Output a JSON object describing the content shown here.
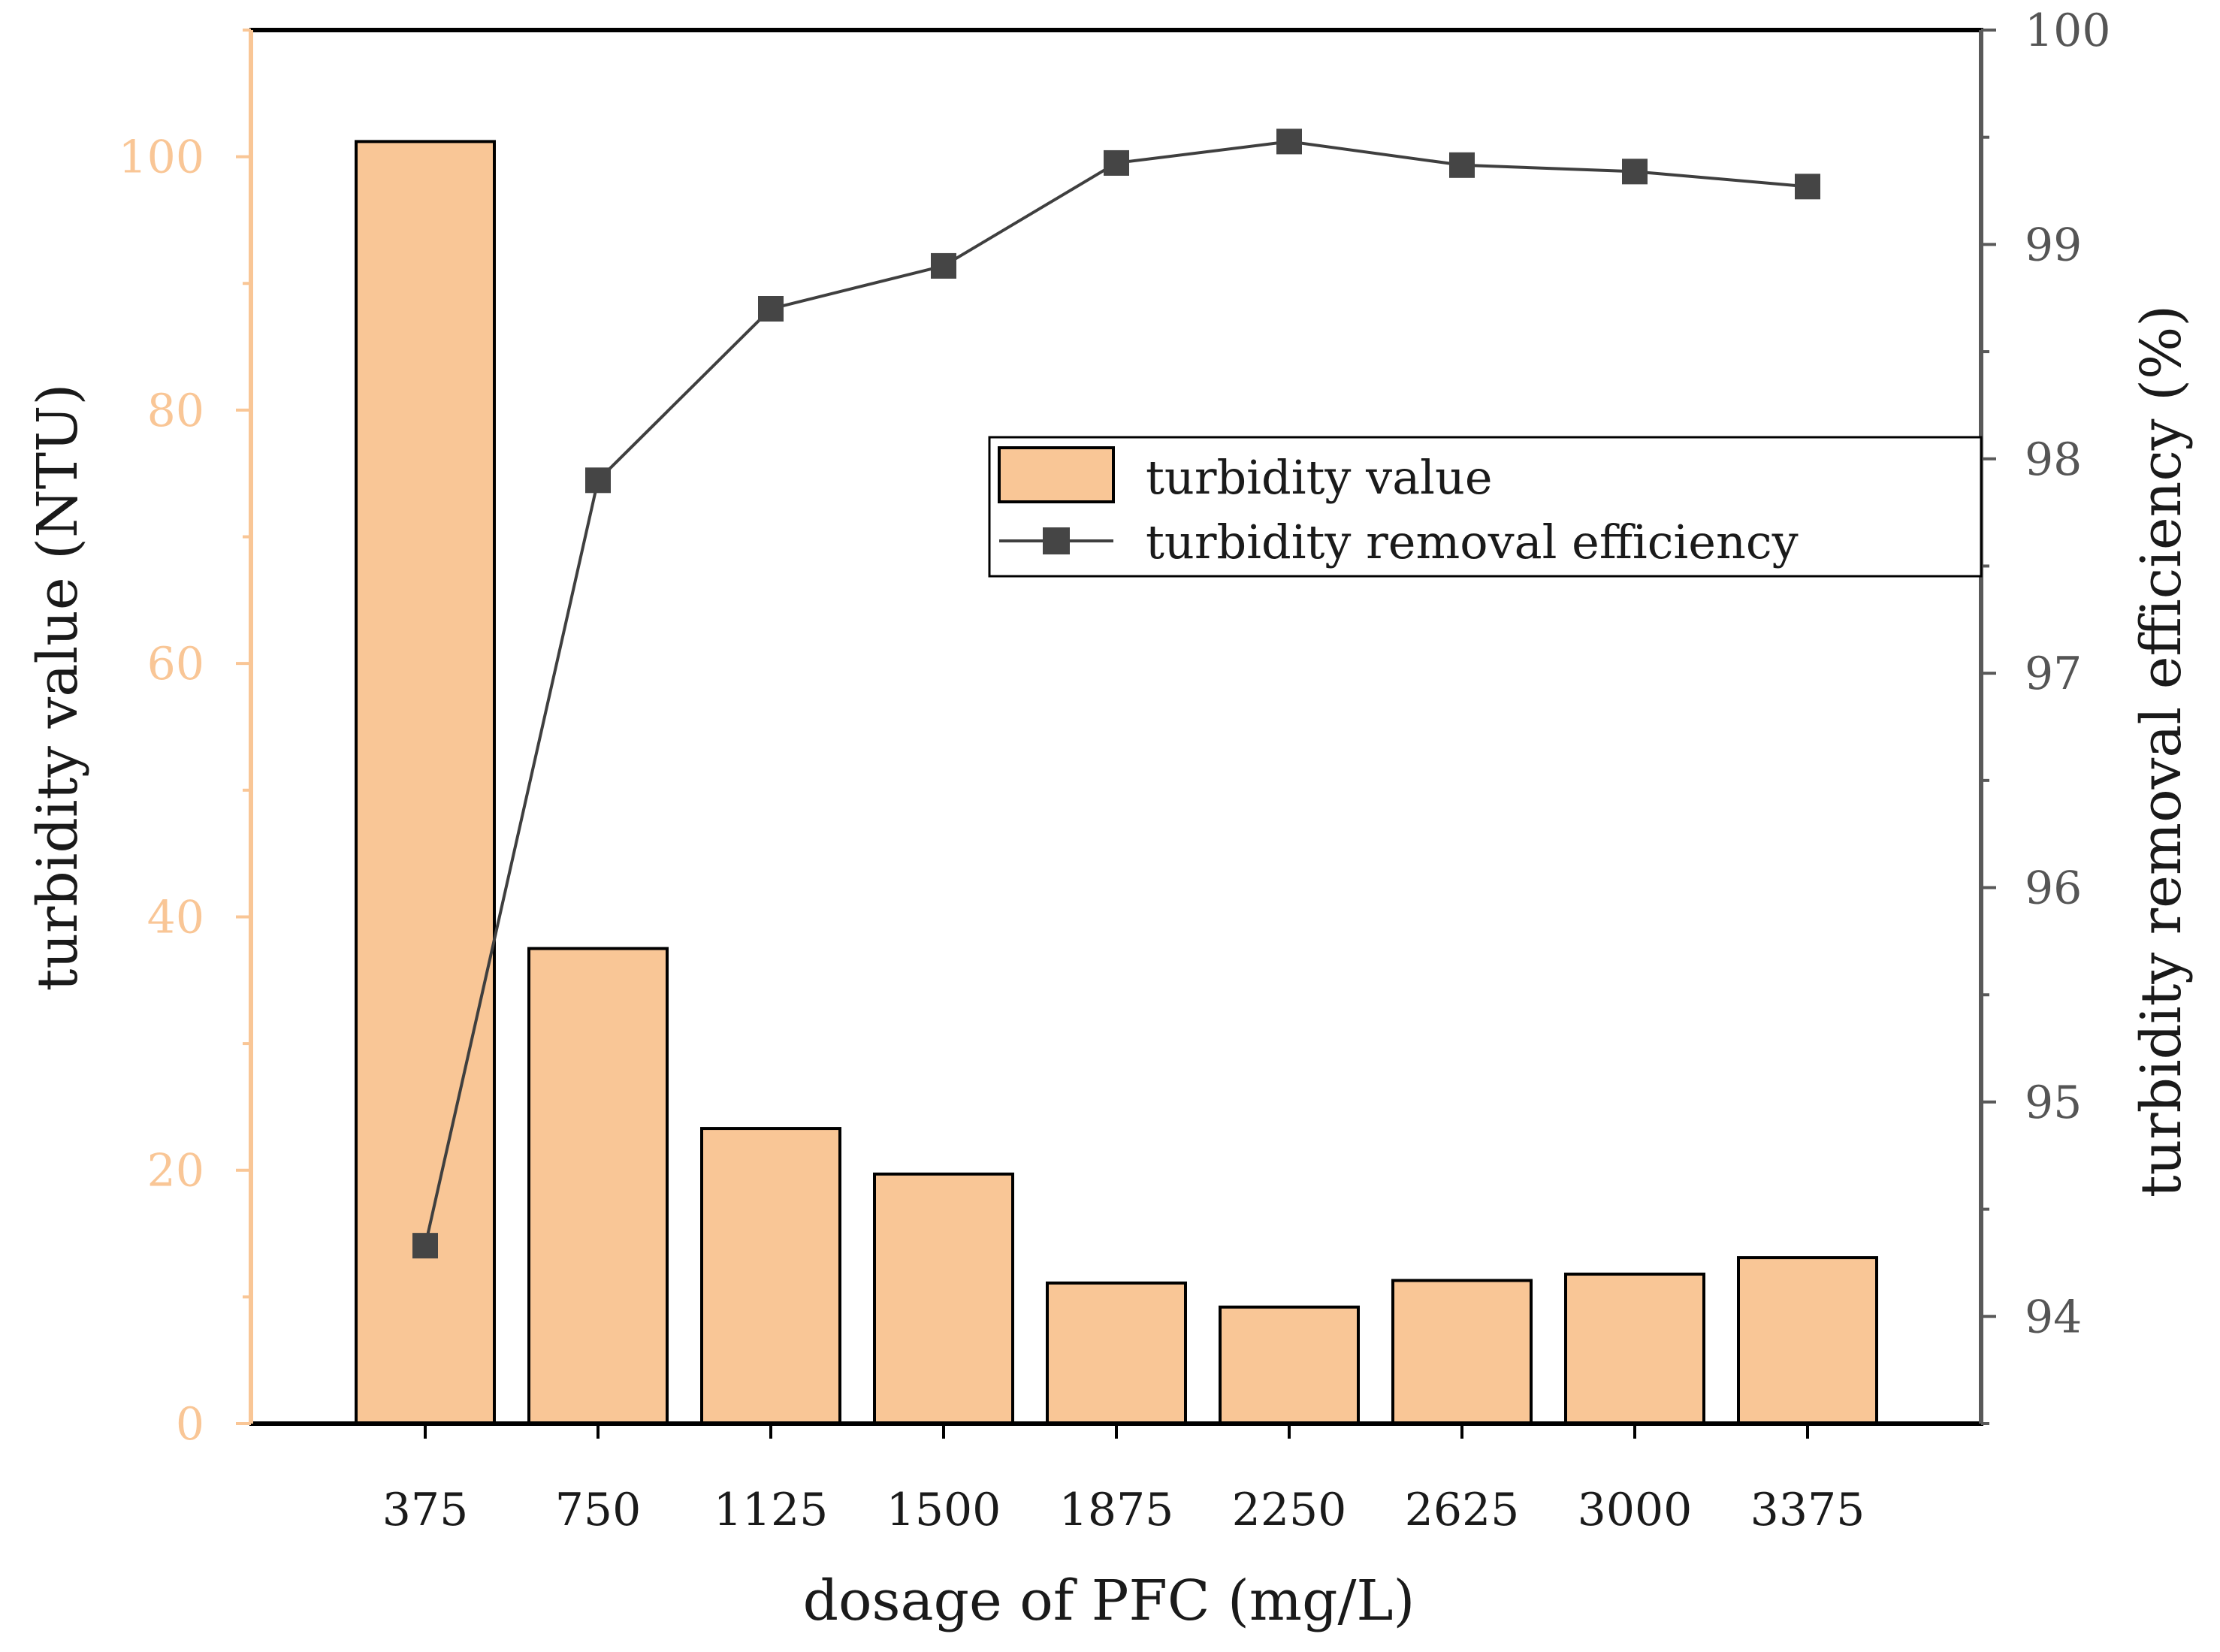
{
  "chart_data": {
    "type": "bar+line",
    "categories": [
      "375",
      "750",
      "1125",
      "1500",
      "1875",
      "2250",
      "2625",
      "3000",
      "3375"
    ],
    "series": [
      {
        "name": "turbidity value",
        "type": "bar",
        "axis": "left",
        "values": [
          101.2,
          37.5,
          23.3,
          19.7,
          11.1,
          9.2,
          11.3,
          11.8,
          13.1
        ]
      },
      {
        "name": "turbidity removal efficiency",
        "type": "line",
        "axis": "right",
        "marker": "square",
        "values": [
          94.33,
          97.9,
          98.7,
          98.9,
          99.38,
          99.48,
          99.37,
          99.34,
          99.27
        ]
      }
    ],
    "xlabel": "dosage of PFC (mg/L)",
    "ylabel_left": "turbidity value (NTU)",
    "ylabel_right": "turbidity removal efficiency (%)",
    "ylim_left": [
      0,
      110
    ],
    "ylim_right": [
      93.5,
      100
    ],
    "yticks_left": [
      "0",
      "20",
      "40",
      "60",
      "80",
      "100"
    ],
    "yticks_right": [
      "94",
      "95",
      "96",
      "97",
      "98",
      "99",
      "100"
    ],
    "legend_position": "upper-right",
    "colors": {
      "bar_fill": "#F9C696",
      "bar_stroke": "#000000",
      "line": "#3F3F3F",
      "marker": "#454545",
      "left_axis": "#F9C696",
      "right_axis": "#595959",
      "frame": "#000000"
    }
  }
}
